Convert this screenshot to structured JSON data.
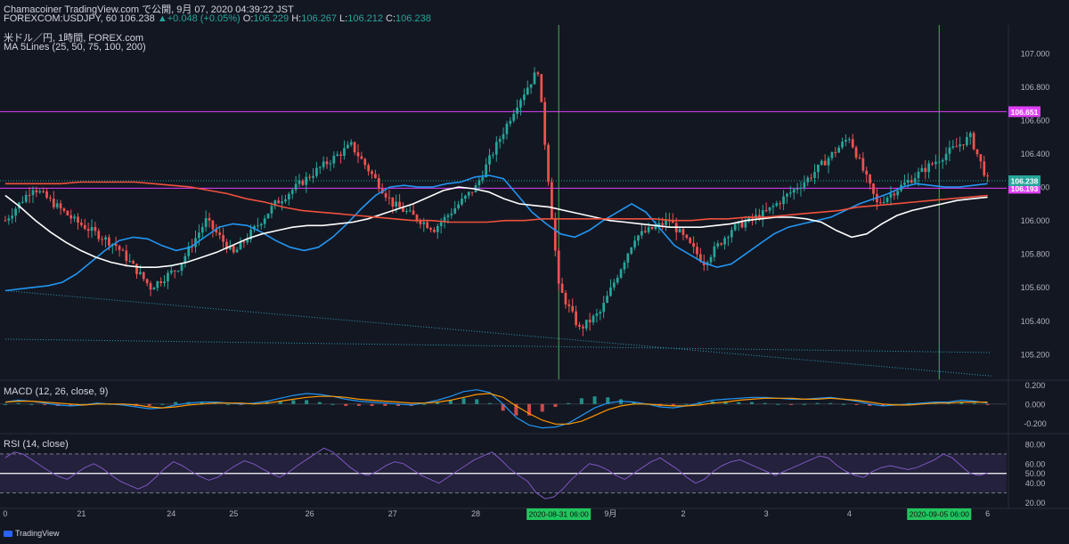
{
  "header": {
    "line1": "Chamacoiner TradingView.com で公開, 9月 07, 2020 04:39:22 JST",
    "symbol": "FOREXCOM:USDJPY, 60",
    "last": "106.238",
    "change": "▲+0.048 (+0.05%)",
    "o_label": "O:",
    "o": "106.229",
    "h_label": "H:",
    "h": "106.267",
    "l_label": "L:",
    "l": "106.212",
    "c_label": "C:",
    "c": "106.238"
  },
  "pane_labels": {
    "main_title": "米ドル／円, 1時間, FOREX.com",
    "ma": "MA 5Lines (25, 50, 75, 100, 200)",
    "macd": "MACD (12, 26, close, 9)",
    "rsi": "RSI (14, close)"
  },
  "footer": {
    "brand": "TradingView"
  },
  "colors": {
    "up": "#26a69a",
    "down": "#ef5350",
    "ma_blue": "#2196f3",
    "ma_white": "#ffffff",
    "ma_red": "#f0503c",
    "level": "#e040fb",
    "vline": "#4caf50",
    "rsi": "#7e57c2",
    "price_tag": "#26a69a",
    "level_tag": "#e040fb"
  },
  "chart_data": [
    {
      "type": "candlestick",
      "symbol": "USDJPY",
      "timeframe": "1h",
      "y_ticks": [
        107.0,
        106.8,
        106.6,
        106.4,
        106.2,
        106.0,
        105.8,
        105.6,
        105.4,
        105.2
      ],
      "y_tick_labels": [
        "107.000",
        "106.800",
        "106.600",
        "106.400",
        "106.200",
        "106.000",
        "105.800",
        "105.600",
        "105.400",
        "105.200"
      ],
      "ylim": [
        105.05,
        107.17
      ],
      "x_tick_labels": [
        "0",
        "21",
        "24",
        "25",
        "26",
        "27",
        "28",
        "9月",
        "2",
        "3",
        "4",
        "6"
      ],
      "x_tick_index": [
        0,
        22,
        48,
        66,
        88,
        112,
        136,
        175,
        196,
        220,
        244,
        284
      ],
      "x_highlight": [
        {
          "label": "2020-08-31   06:00",
          "index": 160
        },
        {
          "label": "2020-09-05   06:00",
          "index": 270
        }
      ],
      "current_price": 106.238,
      "current_price_label": "106.238",
      "levels": [
        {
          "value": 106.651,
          "label": "106.651"
        },
        {
          "value": 106.193,
          "label": "106.193"
        }
      ],
      "ma_lines": [
        {
          "name": "MA 25",
          "color": "#2196f3",
          "values": [
            105.58,
            105.59,
            105.6,
            105.61,
            105.63,
            105.68,
            105.75,
            105.82,
            105.88,
            105.9,
            105.89,
            105.85,
            105.82,
            105.84,
            105.9,
            105.96,
            105.98,
            105.97,
            105.93,
            105.88,
            105.84,
            105.82,
            105.84,
            105.9,
            105.98,
            106.07,
            106.15,
            106.2,
            106.21,
            106.2,
            106.2,
            106.22,
            106.23,
            106.26,
            106.27,
            106.25,
            106.15,
            106.05,
            105.98,
            105.92,
            105.9,
            105.94,
            106.0,
            106.05,
            106.1,
            106.05,
            105.95,
            105.85,
            105.8,
            105.75,
            105.72,
            105.74,
            105.8,
            105.86,
            105.92,
            105.96,
            105.98,
            106.0,
            106.02,
            106.06,
            106.1,
            106.13,
            106.16,
            106.2,
            106.22,
            106.21,
            106.2,
            106.2,
            106.21,
            106.22
          ]
        },
        {
          "name": "MA 50",
          "color": "#ffffff",
          "values": [
            106.15,
            106.08,
            106.0,
            105.93,
            105.87,
            105.82,
            105.78,
            105.75,
            105.73,
            105.72,
            105.72,
            105.73,
            105.75,
            105.78,
            105.81,
            105.85,
            105.89,
            105.92,
            105.94,
            105.96,
            105.97,
            105.97,
            105.98,
            105.99,
            106.01,
            106.04,
            106.07,
            106.1,
            106.14,
            106.18,
            106.2,
            106.19,
            106.17,
            106.13,
            106.1,
            106.09,
            106.08,
            106.06,
            106.04,
            106.02,
            106.0,
            105.99,
            105.98,
            105.97,
            105.96,
            105.96,
            105.96,
            105.97,
            105.98,
            106.0,
            106.01,
            106.02,
            106.02,
            106.01,
            105.99,
            105.94,
            105.9,
            105.92,
            105.98,
            106.03,
            106.06,
            106.08,
            106.1,
            106.12,
            106.13,
            106.14
          ]
        },
        {
          "name": "MA 200",
          "color": "#f0503c",
          "values": [
            106.22,
            106.22,
            106.22,
            106.22,
            106.23,
            106.23,
            106.23,
            106.23,
            106.22,
            106.21,
            106.2,
            106.18,
            106.16,
            106.13,
            106.11,
            106.08,
            106.06,
            106.05,
            106.04,
            106.03,
            106.02,
            106.01,
            106.0,
            106.0,
            105.99,
            105.99,
            105.99,
            106.0,
            106.0,
            106.01,
            106.01,
            106.01,
            106.01,
            106.01,
            106.01,
            106.01,
            106.0,
            106.0,
            106.01,
            106.01,
            106.02,
            106.02,
            106.03,
            106.04,
            106.05,
            106.06,
            106.08,
            106.09,
            106.1,
            106.11,
            106.12,
            106.13,
            106.14,
            106.15
          ]
        }
      ],
      "trendlines": [
        {
          "from": [
            0,
            105.58
          ],
          "to": [
            285,
            105.07
          ]
        },
        {
          "from": [
            0,
            105.29
          ],
          "to": [
            285,
            105.21
          ]
        }
      ]
    },
    {
      "type": "macd",
      "title": "MACD (12, 26, close, 9)",
      "y_ticks": [
        0.2,
        0.0,
        -0.2
      ],
      "y_tick_labels": [
        "0.200",
        "0.000",
        "-0.200"
      ],
      "ylim": [
        -0.3,
        0.24
      ],
      "macd": [
        0.02,
        0.04,
        0.03,
        0.01,
        -0.01,
        -0.02,
        -0.01,
        0.01,
        0.0,
        -0.01,
        -0.03,
        -0.05,
        -0.04,
        -0.01,
        0.01,
        0.02,
        0.02,
        0.01,
        0.0,
        0.01,
        0.03,
        0.06,
        0.09,
        0.11,
        0.1,
        0.08,
        0.05,
        0.03,
        0.02,
        0.01,
        0.0,
        -0.01,
        0.01,
        0.04,
        0.08,
        0.13,
        0.15,
        0.12,
        0.0,
        -0.14,
        -0.22,
        -0.25,
        -0.24,
        -0.2,
        -0.12,
        -0.04,
        0.01,
        0.03,
        0.02,
        0.0,
        -0.03,
        -0.04,
        -0.02,
        0.01,
        0.04,
        0.05,
        0.06,
        0.07,
        0.07,
        0.06,
        0.05,
        0.05,
        0.06,
        0.07,
        0.05,
        0.03,
        0.0,
        -0.02,
        -0.01,
        0.0,
        0.01,
        0.02,
        0.02,
        0.04,
        0.03,
        0.01
      ],
      "signal": [
        0.02,
        0.03,
        0.03,
        0.02,
        0.01,
        0.0,
        -0.01,
        0.0,
        0.0,
        0.0,
        -0.01,
        -0.03,
        -0.04,
        -0.03,
        -0.01,
        0.0,
        0.01,
        0.01,
        0.01,
        0.0,
        0.01,
        0.03,
        0.05,
        0.07,
        0.08,
        0.08,
        0.07,
        0.05,
        0.04,
        0.03,
        0.02,
        0.01,
        0.01,
        0.02,
        0.04,
        0.07,
        0.1,
        0.11,
        0.07,
        -0.02,
        -0.1,
        -0.17,
        -0.21,
        -0.21,
        -0.18,
        -0.12,
        -0.06,
        -0.02,
        0.0,
        0.0,
        -0.01,
        -0.02,
        -0.02,
        -0.01,
        0.01,
        0.02,
        0.04,
        0.05,
        0.06,
        0.06,
        0.06,
        0.05,
        0.05,
        0.06,
        0.05,
        0.04,
        0.02,
        0.0,
        -0.01,
        -0.01,
        0.0,
        0.01,
        0.01,
        0.02,
        0.02,
        0.02
      ]
    },
    {
      "type": "line",
      "title": "RSI (14, close)",
      "y_ticks": [
        80,
        60,
        50,
        40,
        20
      ],
      "y_tick_labels": [
        "80.00",
        "60.00",
        "50.00",
        "40.00",
        "20.00"
      ],
      "ylim": [
        15,
        90
      ],
      "bands": [
        70,
        30
      ],
      "values": [
        66,
        72,
        70,
        64,
        58,
        52,
        47,
        44,
        50,
        56,
        60,
        55,
        48,
        42,
        38,
        34,
        38,
        46,
        55,
        62,
        58,
        52,
        47,
        43,
        46,
        52,
        58,
        63,
        60,
        55,
        50,
        46,
        51,
        58,
        64,
        70,
        76,
        72,
        64,
        56,
        50,
        48,
        52,
        58,
        62,
        60,
        54,
        48,
        44,
        40,
        46,
        52,
        58,
        64,
        68,
        72,
        64,
        55,
        48,
        42,
        30,
        24,
        26,
        34,
        44,
        52,
        60,
        58,
        54,
        48,
        44,
        50,
        56,
        62,
        66,
        60,
        54,
        46,
        40,
        44,
        52,
        58,
        62,
        64,
        60,
        56,
        52,
        48,
        52,
        56,
        60,
        64,
        68,
        66,
        58,
        52,
        48,
        46,
        52,
        56,
        58,
        56,
        54,
        56,
        60,
        64,
        70,
        66,
        58,
        50,
        48,
        50
      ]
    }
  ]
}
